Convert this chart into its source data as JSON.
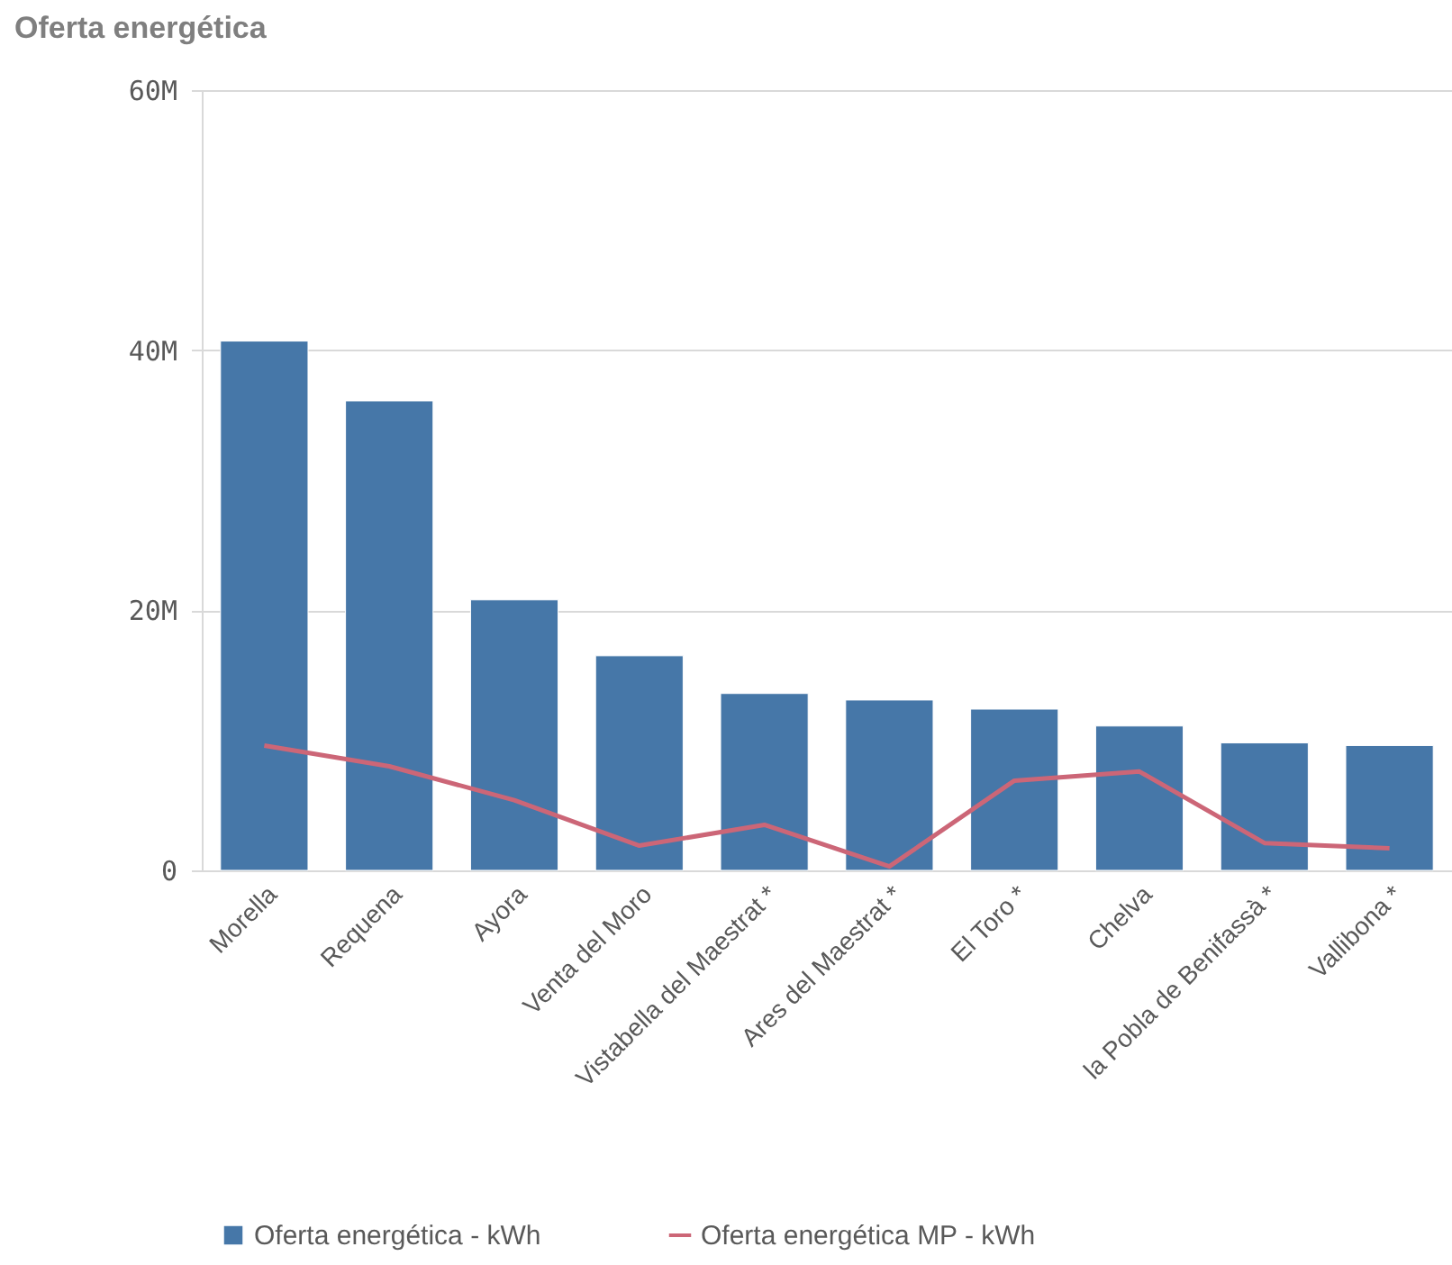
{
  "chart_data": {
    "type": "bar",
    "title": "Oferta energética",
    "categories": [
      "Morella",
      "Requena",
      "Ayora",
      "Venta del Moro",
      "Vistabella del Maestrat *",
      "Ares del Maestrat *",
      "El Toro *",
      "Chelva",
      "la Pobla de Benifassà *",
      "Vallibona *"
    ],
    "series": [
      {
        "name": "Oferta energética - kWh",
        "color": "#4677a8",
        "values": [
          40700000,
          36100000,
          20800000,
          16500000,
          13600000,
          13100000,
          12400000,
          11100000,
          9800000,
          9600000
        ]
      },
      {
        "name": "Oferta energética MP - kWh",
        "type": "line",
        "color": "#cc6677",
        "values": [
          9600000,
          8000000,
          5400000,
          1900000,
          3500000,
          300000,
          6900000,
          7600000,
          2100000,
          1700000
        ]
      }
    ],
    "ylim": [
      0,
      60000000
    ],
    "yticks": [
      0,
      {
        "value": 20000000,
        "label": "20M"
      },
      {
        "value": 40000000,
        "label": "40M"
      },
      {
        "value": 60000000,
        "label": "60M"
      }
    ],
    "grid": "y",
    "legend": "bottom"
  }
}
